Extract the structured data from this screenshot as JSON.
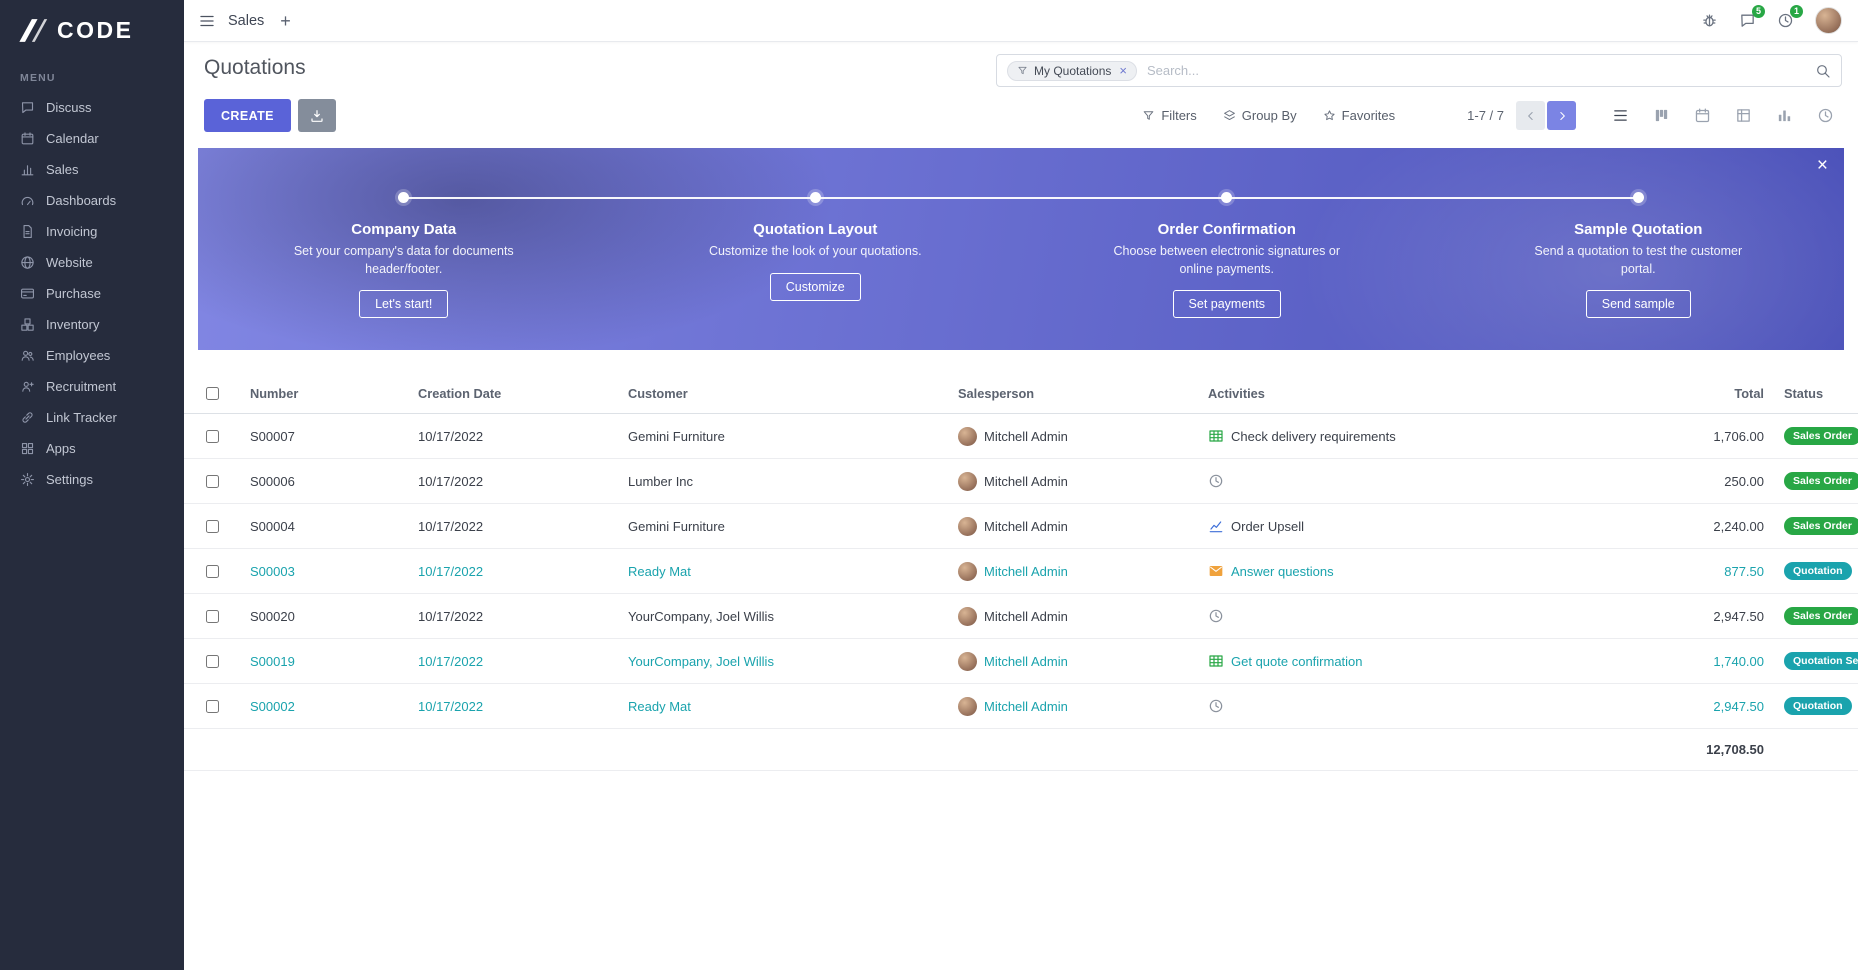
{
  "colors": {
    "primary": "#5a63d8",
    "success": "#28a745",
    "info": "#1aa3ad",
    "sidebar-bg": "#262c3d",
    "banner-start": "#8186e3",
    "banner-end": "#4b51b9"
  },
  "brand": {
    "logo_text": "CODE",
    "menu_label": "MENU"
  },
  "sidebar": {
    "items": [
      {
        "label": "Discuss",
        "icon": "discuss-icon"
      },
      {
        "label": "Calendar",
        "icon": "calendar-icon"
      },
      {
        "label": "Sales",
        "icon": "sales-icon"
      },
      {
        "label": "Dashboards",
        "icon": "dashboards-icon"
      },
      {
        "label": "Invoicing",
        "icon": "invoicing-icon"
      },
      {
        "label": "Website",
        "icon": "website-icon"
      },
      {
        "label": "Purchase",
        "icon": "purchase-icon"
      },
      {
        "label": "Inventory",
        "icon": "inventory-icon"
      },
      {
        "label": "Employees",
        "icon": "employees-icon"
      },
      {
        "label": "Recruitment",
        "icon": "recruitment-icon"
      },
      {
        "label": "Link Tracker",
        "icon": "link-tracker-icon"
      },
      {
        "label": "Apps",
        "icon": "apps-icon"
      },
      {
        "label": "Settings",
        "icon": "settings-icon"
      }
    ]
  },
  "topbar": {
    "app_name": "Sales",
    "message_badge": "5",
    "activity_badge": "1"
  },
  "control_panel": {
    "title": "Quotations",
    "search": {
      "facet": "My Quotations",
      "placeholder": "Search..."
    },
    "create_label": "CREATE",
    "filters_label": "Filters",
    "group_by_label": "Group By",
    "favorites_label": "Favorites",
    "pager": "1-7 / 7"
  },
  "banner": {
    "steps": [
      {
        "title": "Company Data",
        "desc": "Set your company's data for documents header/footer.",
        "button": "Let's start!"
      },
      {
        "title": "Quotation Layout",
        "desc": "Customize the look of your quotations.",
        "button": "Customize"
      },
      {
        "title": "Order Confirmation",
        "desc": "Choose between electronic signatures or online payments.",
        "button": "Set payments"
      },
      {
        "title": "Sample Quotation",
        "desc": "Send a quotation to test the customer portal.",
        "button": "Send sample"
      }
    ]
  },
  "table": {
    "headers": {
      "number": "Number",
      "creation_date": "Creation Date",
      "customer": "Customer",
      "salesperson": "Salesperson",
      "activities": "Activities",
      "total": "Total",
      "status": "Status"
    },
    "rows": [
      {
        "number": "S00007",
        "creation_date": "10/17/2022",
        "customer": "Gemini Furniture",
        "salesperson": "Mitchell Admin",
        "activity": {
          "icon": "spreadsheet-activity-icon",
          "label": "Check delivery requirements"
        },
        "total": "1,706.00",
        "status": {
          "label": "Sales Order",
          "variant": "success"
        },
        "emphasis": false
      },
      {
        "number": "S00006",
        "creation_date": "10/17/2022",
        "customer": "Lumber Inc",
        "salesperson": "Mitchell Admin",
        "activity": {
          "icon": "clock-activity-icon",
          "label": ""
        },
        "total": "250.00",
        "status": {
          "label": "Sales Order",
          "variant": "success"
        },
        "emphasis": false
      },
      {
        "number": "S00004",
        "creation_date": "10/17/2022",
        "customer": "Gemini Furniture",
        "salesperson": "Mitchell Admin",
        "activity": {
          "icon": "chart-activity-icon",
          "label": "Order Upsell"
        },
        "total": "2,240.00",
        "status": {
          "label": "Sales Order",
          "variant": "success"
        },
        "emphasis": false
      },
      {
        "number": "S00003",
        "creation_date": "10/17/2022",
        "customer": "Ready Mat",
        "salesperson": "Mitchell Admin",
        "activity": {
          "icon": "envelope-activity-icon",
          "label": "Answer questions"
        },
        "total": "877.50",
        "status": {
          "label": "Quotation",
          "variant": "info"
        },
        "emphasis": true
      },
      {
        "number": "S00020",
        "creation_date": "10/17/2022",
        "customer": "YourCompany, Joel Willis",
        "salesperson": "Mitchell Admin",
        "activity": {
          "icon": "clock-activity-icon",
          "label": ""
        },
        "total": "2,947.50",
        "status": {
          "label": "Sales Order",
          "variant": "success"
        },
        "emphasis": false
      },
      {
        "number": "S00019",
        "creation_date": "10/17/2022",
        "customer": "YourCompany, Joel Willis",
        "salesperson": "Mitchell Admin",
        "activity": {
          "icon": "spreadsheet-activity-icon",
          "label": "Get quote confirmation"
        },
        "total": "1,740.00",
        "status": {
          "label": "Quotation Sent",
          "variant": "info"
        },
        "emphasis": true
      },
      {
        "number": "S00002",
        "creation_date": "10/17/2022",
        "customer": "Ready Mat",
        "salesperson": "Mitchell Admin",
        "activity": {
          "icon": "clock-activity-icon",
          "label": ""
        },
        "total": "2,947.50",
        "status": {
          "label": "Quotation",
          "variant": "info"
        },
        "emphasis": true
      }
    ],
    "sum_total": "12,708.50"
  }
}
